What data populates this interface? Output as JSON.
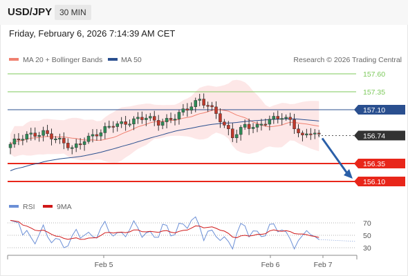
{
  "header": {
    "symbol": "USD/JPY",
    "timeframe": "30 MIN"
  },
  "datetime": "Friday, February 6, 2026 7:14:39 AM CET",
  "legend": {
    "ma20": "MA 20 + Bollinger Bands",
    "ma50": "MA 50",
    "credit": "Research © 2026 Trading Central"
  },
  "colors": {
    "up": "#2e8b57",
    "down": "#c0392b",
    "ma20": "#f08070",
    "ma50": "#2a4f8f",
    "green": "#7cc95a",
    "red": "#e8261a",
    "bb_fill": "#fde3e3",
    "rsi": "#6b8fd6",
    "rsi_ma": "#d01818"
  },
  "chart_data": [
    {
      "type": "candlestick",
      "x_ticks": [
        "Feb 5",
        "Feb 6",
        "Feb 7"
      ],
      "ylim": [
        156.0,
        157.7
      ],
      "levels": [
        {
          "value": 157.6,
          "label": "157.60",
          "style": "resistance-green"
        },
        {
          "value": 157.35,
          "label": "157.35",
          "style": "resistance-green"
        },
        {
          "value": 157.1,
          "label": "157.10",
          "style": "pivot-blue"
        },
        {
          "value": 156.74,
          "label": "156.74",
          "style": "last-price"
        },
        {
          "value": 156.35,
          "label": "156.35",
          "style": "support-red"
        },
        {
          "value": 156.1,
          "label": "156.10",
          "style": "support-red"
        }
      ],
      "last_price": 156.74,
      "forecast_arrow": {
        "from": 156.74,
        "to": 156.1,
        "direction": "down"
      },
      "series": [
        {
          "name": "MA 20 + Bollinger Bands",
          "type": "line"
        },
        {
          "name": "MA 50",
          "type": "line"
        }
      ]
    },
    {
      "type": "line",
      "series": [
        {
          "name": "RSI"
        },
        {
          "name": "9MA"
        }
      ],
      "y_ticks": [
        70,
        50,
        30
      ],
      "ylim": [
        15,
        85
      ]
    }
  ]
}
